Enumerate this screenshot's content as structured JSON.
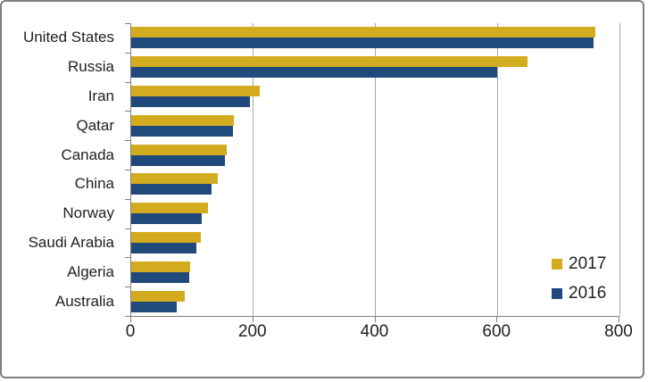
{
  "window": {
    "background": "#ffffff",
    "border_color": "#7f7f7f"
  },
  "chart_data": {
    "type": "bar",
    "orientation": "horizontal",
    "title": "",
    "categories": [
      "United States",
      "Russia",
      "Iran",
      "Qatar",
      "Canada",
      "China",
      "Norway",
      "Saudi Arabia",
      "Algeria",
      "Australia"
    ],
    "series": [
      {
        "name": "2017",
        "color": "#d3ab1e",
        "values": [
          760,
          650,
          210,
          168,
          157,
          142,
          126,
          114,
          96,
          88
        ]
      },
      {
        "name": "2016",
        "color": "#214a7c",
        "values": [
          757,
          600,
          195,
          167,
          153,
          132,
          116,
          107,
          95,
          75
        ]
      }
    ],
    "xlabel": "",
    "ylabel": "",
    "xlim": [
      0,
      800
    ],
    "xticks": [
      0,
      200,
      400,
      600,
      800
    ],
    "grid": "vertical gridlines at x ticks",
    "gridline_color": "#a6a6a6",
    "axis_color": "#808080",
    "text_color": "#1f1f1f",
    "legend_position": "right-middle"
  }
}
